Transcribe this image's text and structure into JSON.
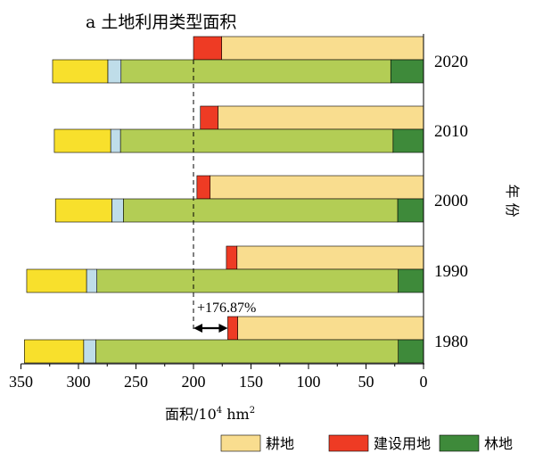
{
  "chart_data": {
    "type": "bar",
    "orientation": "horizontal",
    "title": "a 土地利用类型面积",
    "xlabel_parts": {
      "base": "面积/10",
      "sup": "4",
      "unit": " hm",
      "unit_sup": "2"
    },
    "ylabel": "年 份",
    "xlim": [
      0,
      350
    ],
    "x_reversed": true,
    "x_ticks": [
      350,
      300,
      250,
      200,
      150,
      100,
      50,
      0
    ],
    "categories": [
      "2020",
      "2010",
      "2000",
      "1990",
      "1980"
    ],
    "legend": [
      "耕地",
      "建设用地",
      "林地"
    ],
    "legend_position": "bottom-right",
    "colors": {
      "耕地": "#f9dd8f",
      "建设用地": "#ee3b24",
      "林地": "#3e8a3a",
      "grass": "#b3cd55",
      "water": "#bfdde9",
      "other": "#f8e02c"
    },
    "upper_series": [
      {
        "name": "耕地",
        "color_key": "耕地",
        "values": [
          175.5,
          178.7,
          185.5,
          162.2,
          161.6
        ]
      },
      {
        "name": "建设用地",
        "color_key": "建设用地",
        "values": [
          24.5,
          15.3,
          11.5,
          9.2,
          8.6
        ]
      }
    ],
    "lower_series": [
      {
        "color_key": "林地",
        "values": [
          28.5,
          26.5,
          22.5,
          22.0,
          22.0
        ]
      },
      {
        "color_key": "grass",
        "values": [
          234.5,
          237.0,
          238.5,
          262.0,
          263.0
        ]
      },
      {
        "color_key": "water",
        "values": [
          11.5,
          8.5,
          10.0,
          9.0,
          10.5
        ]
      },
      {
        "color_key": "other",
        "values": [
          48.0,
          49.0,
          49.0,
          52.0,
          51.5
        ]
      }
    ],
    "annotation": {
      "text": "+176.87%",
      "from_value": 200.0,
      "to_value": 170.2
    }
  }
}
